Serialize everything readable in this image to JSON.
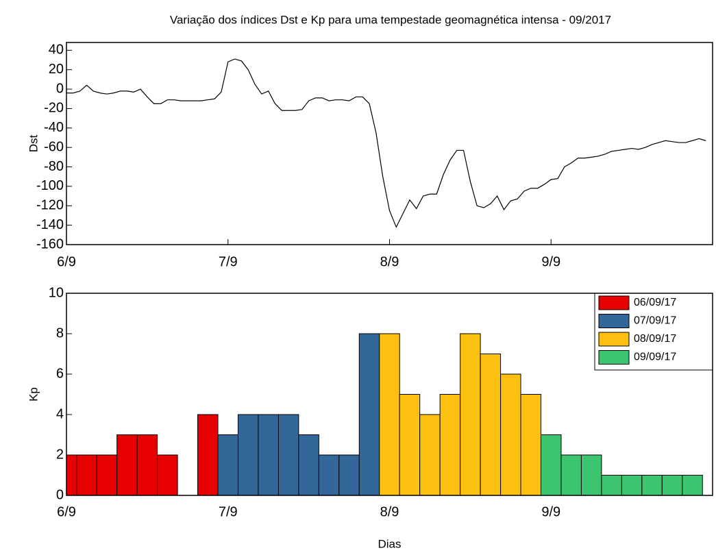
{
  "chart_data": [
    {
      "type": "line",
      "title": "Variação dos índices Dst e Kp para uma tempestade geomagnética intensa - 09/2017",
      "ylabel": "Dst",
      "x": [
        0,
        1,
        2,
        3,
        4,
        5,
        6,
        7,
        8,
        9,
        10,
        11,
        12,
        13,
        14,
        15,
        16,
        17,
        18,
        19,
        20,
        21,
        22,
        23,
        24,
        25,
        26,
        27,
        28,
        29,
        30,
        31,
        32,
        33,
        34,
        35,
        36,
        37,
        38,
        39,
        40,
        41,
        42,
        43,
        44,
        45,
        46,
        47,
        48,
        49,
        50,
        51,
        52,
        53,
        54,
        55,
        56,
        57,
        58,
        59,
        60,
        61,
        62,
        63,
        64,
        65,
        66,
        67,
        68,
        69,
        70,
        71,
        72,
        73,
        74,
        75,
        76,
        77,
        78,
        79,
        80,
        81,
        82,
        83,
        84,
        85,
        86,
        87,
        88,
        89,
        90,
        91,
        92,
        93,
        94,
        95
      ],
      "values": [
        -4,
        -4,
        -2,
        4,
        -2,
        -4,
        -5,
        -4,
        -2,
        -2,
        -3,
        0,
        -8,
        -15,
        -15,
        -11,
        -11,
        -12,
        -12,
        -12,
        -12,
        -11,
        -10,
        -3,
        28,
        31,
        29,
        20,
        5,
        -5,
        -2,
        -15,
        -22,
        -22,
        -22,
        -21,
        -12,
        -9,
        -9,
        -12,
        -11,
        -11,
        -12,
        -8,
        -8,
        -15,
        -45,
        -90,
        -125,
        -142,
        -128,
        -114,
        -123,
        -110,
        -108,
        -108,
        -88,
        -73,
        -63,
        -63,
        -95,
        -120,
        -122,
        -118,
        -110,
        -124,
        -115,
        -113,
        -105,
        -102,
        -102,
        -98,
        -93,
        -92,
        -80,
        -76,
        -71,
        -71,
        -70,
        -69,
        -67,
        -64,
        -63,
        -62,
        -61,
        -62,
        -60,
        -57,
        -55,
        -53,
        -54,
        -55,
        -55,
        -53,
        -51,
        -53
      ],
      "color": "#000000",
      "xlim": [
        0,
        96
      ],
      "xticks": [
        {
          "value": 0,
          "label": "6/9"
        },
        {
          "value": 24,
          "label": "7/9"
        },
        {
          "value": 48,
          "label": "8/9"
        },
        {
          "value": 72,
          "label": "9/9"
        }
      ],
      "ylim": [
        -160,
        48
      ],
      "yticks": [
        -160,
        -140,
        -120,
        -100,
        -80,
        -60,
        -40,
        -20,
        0,
        20,
        40
      ]
    },
    {
      "type": "bar",
      "ylabel": "Kp",
      "xlabel": "Dias",
      "legend": "upper right",
      "xlim": [
        0,
        96
      ],
      "xticks": [
        {
          "value": 0,
          "label": "6/9"
        },
        {
          "value": 24,
          "label": "7/9"
        },
        {
          "value": 48,
          "label": "8/9"
        },
        {
          "value": 72,
          "label": "9/9"
        }
      ],
      "ylim": [
        0,
        10
      ],
      "yticks": [
        0,
        2,
        4,
        6,
        8,
        10
      ],
      "series": [
        {
          "name": "06/09/17",
          "color": "#e60000",
          "x": [
            0,
            3,
            6,
            9,
            12,
            15,
            18,
            21
          ],
          "values": [
            2,
            2,
            2,
            3,
            3,
            2,
            null,
            4
          ]
        },
        {
          "name": "07/09/17",
          "color": "#336699",
          "x": [
            24,
            27,
            30,
            33,
            36,
            39,
            42,
            45
          ],
          "values": [
            3,
            4,
            4,
            4,
            3,
            2,
            2,
            8
          ]
        },
        {
          "name": "08/09/17",
          "color": "#fcc010",
          "x": [
            48,
            51,
            54,
            57,
            60,
            63,
            66,
            69
          ],
          "values": [
            8,
            5,
            4,
            5,
            8,
            7,
            6,
            5
          ]
        },
        {
          "name": "09/09/17",
          "color": "#3cc46e",
          "x": [
            72,
            75,
            78,
            81,
            84,
            87,
            90,
            93
          ],
          "values": [
            3,
            2,
            2,
            1,
            1,
            1,
            1,
            1
          ]
        }
      ]
    }
  ]
}
